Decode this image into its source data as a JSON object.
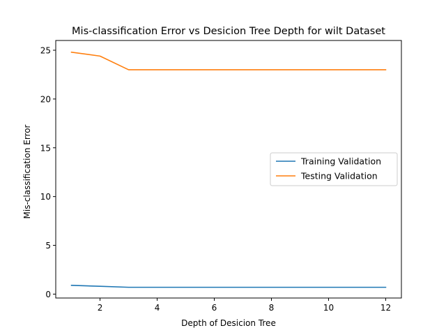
{
  "chart_data": {
    "type": "line",
    "title": "Mis-classification Error vs Desicion Tree Depth for wilt Dataset",
    "xlabel": "Depth of Desicion Tree",
    "ylabel": "Mis-classification Error",
    "xlim": [
      0.45,
      12.55
    ],
    "ylim": [
      -0.4,
      26.0
    ],
    "xticks": [
      2,
      4,
      6,
      8,
      10,
      12
    ],
    "yticks": [
      0,
      5,
      10,
      15,
      20,
      25
    ],
    "grid": false,
    "legend_position": "center-right",
    "x": [
      1,
      2,
      3,
      4,
      5,
      6,
      7,
      8,
      9,
      10,
      11,
      12
    ],
    "series": [
      {
        "name": "Training Validation",
        "color": "#1f77b4",
        "values": [
          0.9,
          0.8,
          0.7,
          0.7,
          0.7,
          0.7,
          0.7,
          0.7,
          0.7,
          0.7,
          0.7,
          0.7
        ]
      },
      {
        "name": "Testing Validation",
        "color": "#ff7f0e",
        "values": [
          24.8,
          24.4,
          23.0,
          23.0,
          23.0,
          23.0,
          23.0,
          23.0,
          23.0,
          23.0,
          23.0,
          23.0
        ]
      }
    ]
  }
}
